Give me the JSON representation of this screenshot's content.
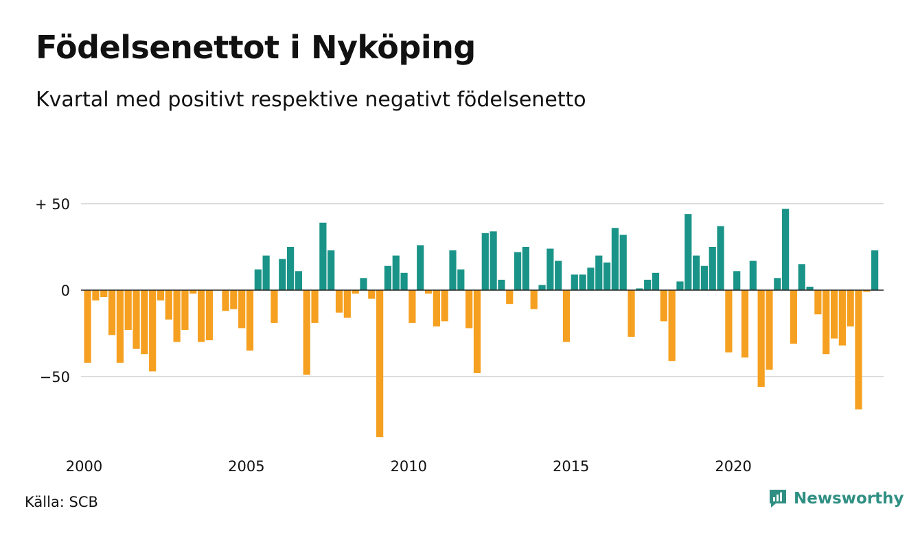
{
  "header": {
    "title": "Födelsenettot i Nyköping",
    "subtitle": "Kvartal med positivt respektive negativt födelsenetto"
  },
  "footer": {
    "source": "Källa: SCB",
    "brand": "Newsworthy",
    "brand_icon": "chart-bubble-icon"
  },
  "colors": {
    "positive": "#1a9488",
    "negative": "#f5a020",
    "gridline": "#dddddd",
    "baseline": "#222222",
    "brand": "#2f8f83"
  },
  "chart_data": {
    "type": "bar",
    "x_start": 2000,
    "x_step": 0.25,
    "values": [
      -42,
      -6,
      -4,
      -26,
      -42,
      -23,
      -34,
      -37,
      -47,
      -6,
      -17,
      -30,
      -23,
      -2,
      -30,
      -29,
      0,
      -12,
      -11,
      -22,
      -35,
      12,
      20,
      -19,
      18,
      25,
      11,
      -49,
      -19,
      39,
      23,
      -13,
      -16,
      -2,
      7,
      -5,
      -85,
      14,
      20,
      10,
      -19,
      26,
      -2,
      -21,
      -18,
      23,
      12,
      -22,
      -48,
      33,
      34,
      6,
      -8,
      22,
      25,
      -11,
      3,
      24,
      17,
      -30,
      9,
      9,
      13,
      20,
      16,
      36,
      32,
      -27,
      1,
      6,
      10,
      -18,
      -41,
      5,
      44,
      20,
      14,
      25,
      37,
      -36,
      11,
      -39,
      17,
      -56,
      -46,
      7,
      47,
      -31,
      15,
      2,
      -14,
      -37,
      -28,
      -32,
      -21,
      -69,
      -1,
      23
    ],
    "x_ticks": [
      "2000",
      "2005",
      "2010",
      "2015",
      "2020"
    ],
    "y_ticks": [
      {
        "value": 50,
        "label": "+ 50"
      },
      {
        "value": 0,
        "label": "0"
      },
      {
        "value": -50,
        "label": "−50"
      }
    ],
    "ylim": [
      -88,
      52
    ],
    "grid": true,
    "legend": "none"
  }
}
